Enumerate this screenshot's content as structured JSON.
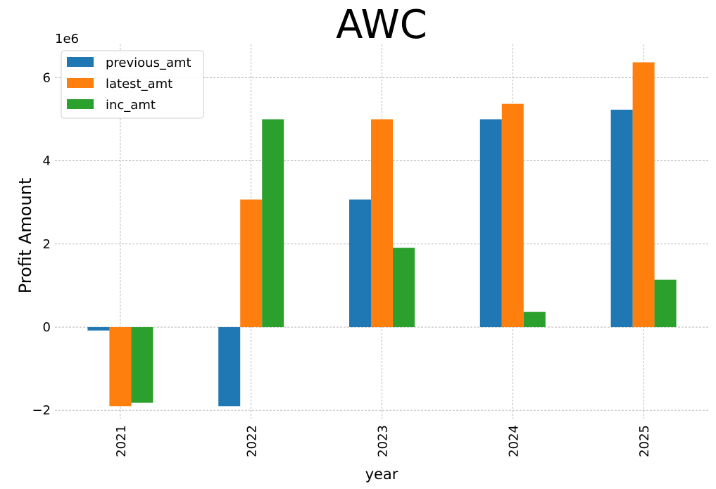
{
  "chart_data": {
    "type": "bar",
    "title": "AWC",
    "xlabel": "year",
    "ylabel": "Profit Amount",
    "y_scale_label": "1e6",
    "categories": [
      "2021",
      "2022",
      "2023",
      "2024",
      "2025"
    ],
    "series": [
      {
        "name": "previous_amt",
        "color": "#1f77b4",
        "values": [
          -80000,
          -1900000,
          3070000,
          5000000,
          5230000
        ]
      },
      {
        "name": "latest_amt",
        "color": "#ff7f0e",
        "values": [
          -1900000,
          3070000,
          5000000,
          5370000,
          6370000
        ]
      },
      {
        "name": "inc_amt",
        "color": "#2ca02c",
        "values": [
          -1820000,
          5000000,
          1910000,
          370000,
          1140000
        ]
      }
    ],
    "ylim": [
      -2400000,
      6800000
    ],
    "yticks": [
      -2000000,
      0,
      2000000,
      4000000,
      6000000
    ],
    "ytick_labels": [
      "−2",
      "0",
      "2",
      "4",
      "6"
    ],
    "grid": true,
    "legend_position": "top-left"
  }
}
